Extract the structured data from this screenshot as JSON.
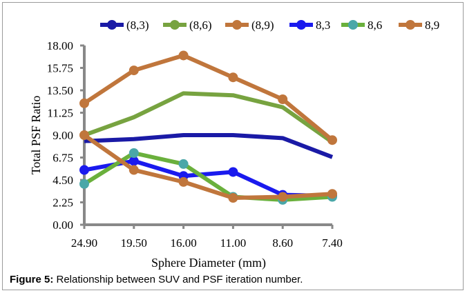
{
  "caption": {
    "label": "Figure 5:",
    "text": " Relationship between SUV and PSF iteration number."
  },
  "chart_data": {
    "type": "line",
    "title": "",
    "xlabel": "Sphere Diameter (mm)",
    "ylabel": "Total PSF Ratio",
    "categories": [
      "24.90",
      "19.50",
      "16.00",
      "11.00",
      "8.60",
      "7.40"
    ],
    "yticks": [
      "0.00",
      "2.25",
      "4.50",
      "6.75",
      "9.00",
      "11.25",
      "13.50",
      "15.75",
      "18.00"
    ],
    "ylim": [
      0,
      18
    ],
    "grid": false,
    "legend_position": "top",
    "series": [
      {
        "name": "(8,3)",
        "color": "#1a1aa6",
        "marker": false,
        "values": [
          8.4,
          8.6,
          9.0,
          9.0,
          8.7,
          6.8
        ]
      },
      {
        "name": "(8,6)",
        "color": "#77a340",
        "marker": false,
        "values": [
          9.0,
          10.8,
          13.2,
          13.0,
          11.8,
          8.3
        ]
      },
      {
        "name": "(8,9)",
        "color": "#c0763c",
        "marker": true,
        "values": [
          12.2,
          15.5,
          17.0,
          14.8,
          12.6,
          8.5
        ]
      },
      {
        "name": "8,3",
        "color": "#1a1aee",
        "marker": true,
        "values": [
          5.5,
          6.4,
          4.9,
          5.3,
          3.0,
          2.9
        ]
      },
      {
        "name": "8,6",
        "color": "#6ab03c",
        "marker": true,
        "marker_color": "#4aa7a8",
        "values": [
          4.1,
          7.2,
          6.1,
          2.8,
          2.5,
          2.8
        ]
      },
      {
        "name": "8,9",
        "color": "#c0763c",
        "marker": true,
        "values": [
          9.0,
          5.5,
          4.3,
          2.7,
          2.8,
          3.1
        ]
      }
    ]
  }
}
